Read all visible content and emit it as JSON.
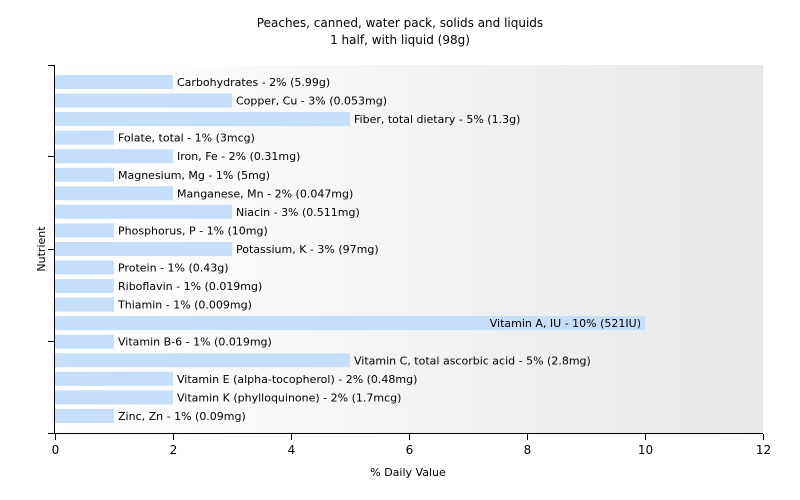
{
  "chart_data": {
    "type": "bar",
    "orientation": "horizontal",
    "title": "Peaches, canned, water pack, solids and liquids",
    "subtitle": "1 half, with liquid (98g)",
    "xlabel": "% Daily Value",
    "ylabel": "Nutrient",
    "xlim": [
      0,
      12
    ],
    "xticks": [
      "0",
      "2",
      "4",
      "6",
      "8",
      "10",
      "12"
    ],
    "grid": false,
    "bar_color": "#c6defa",
    "categories": [
      "Carbohydrates",
      "Copper, Cu",
      "Fiber, total dietary",
      "Folate, total",
      "Iron, Fe",
      "Magnesium, Mg",
      "Manganese, Mn",
      "Niacin",
      "Phosphorus, P",
      "Potassium, K",
      "Protein",
      "Riboflavin",
      "Thiamin",
      "Vitamin A, IU",
      "Vitamin B-6",
      "Vitamin C, total ascorbic acid",
      "Vitamin E (alpha-tocopherol)",
      "Vitamin K (phylloquinone)",
      "Zinc, Zn"
    ],
    "values": [
      2,
      3,
      5,
      1,
      2,
      1,
      2,
      3,
      1,
      3,
      1,
      1,
      1,
      10,
      1,
      5,
      2,
      2,
      1
    ],
    "labels": [
      "Carbohydrates - 2% (5.99g)",
      "Copper, Cu - 3% (0.053mg)",
      "Fiber, total dietary - 5% (1.3g)",
      "Folate, total - 1% (3mcg)",
      "Iron, Fe - 2% (0.31mg)",
      "Magnesium, Mg - 1% (5mg)",
      "Manganese, Mn - 2% (0.047mg)",
      "Niacin - 3% (0.511mg)",
      "Phosphorus, P - 1% (10mg)",
      "Potassium, K - 3% (97mg)",
      "Protein - 1% (0.43g)",
      "Riboflavin - 1% (0.019mg)",
      "Thiamin - 1% (0.009mg)",
      "Vitamin A, IU - 10% (521IU)",
      "Vitamin B-6 - 1% (0.019mg)",
      "Vitamin C, total ascorbic acid - 5% (2.8mg)",
      "Vitamin E (alpha-tocopherol) - 2% (0.48mg)",
      "Vitamin K (phylloquinone) - 2% (1.7mcg)",
      "Zinc, Zn - 1% (0.09mg)"
    ]
  }
}
